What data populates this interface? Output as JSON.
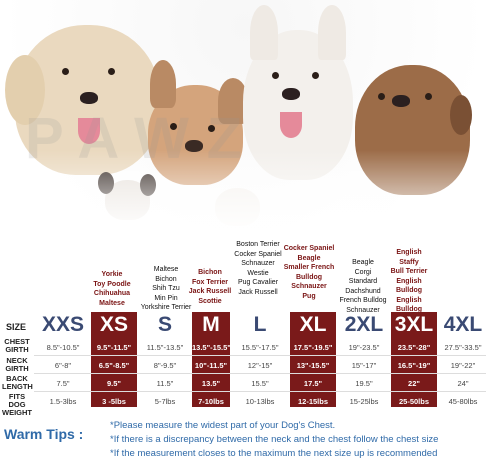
{
  "watermark": "PAWZ",
  "breeds": [
    {
      "col": "xs",
      "items": [
        "Yorkie",
        "Toy Poodle",
        "Chihuahua",
        "Maltese"
      ]
    },
    {
      "col": "s",
      "items": [
        "Maltese",
        "Bichon",
        "Shih Tzu",
        "Min Pin",
        "Yorkshire Terrier"
      ]
    },
    {
      "col": "m",
      "items": [
        "Bichon",
        "Fox Terrier",
        "Jack Russell",
        "Scottie"
      ]
    },
    {
      "col": "l",
      "items": [
        "Boston Terrier",
        "Cocker Spaniel",
        "Schnauzer",
        "Westie",
        "Pug Cavalier",
        "Jack Russell"
      ]
    },
    {
      "col": "xl",
      "items": [
        "Cocker Spaniel",
        "Beagle",
        "Smaller French Bulldog",
        "Schnauzer",
        "Pug"
      ]
    },
    {
      "col": "2xl",
      "items": [
        "Beagle",
        "Corgi",
        "Standard Dachshund",
        "French Bulldog",
        "Schnauzer"
      ]
    },
    {
      "col": "3xl",
      "items": [
        "English Staffy",
        "Bull Terrier",
        "English Bulldog",
        "English Bulldog"
      ]
    }
  ],
  "table": {
    "size_header": "SIZE",
    "sizes": [
      "XXS",
      "XS",
      "S",
      "M",
      "L",
      "XL",
      "2XL",
      "3XL",
      "4XL"
    ],
    "highlight_colors": {
      "dark_red": "#7a1a1a",
      "size_blue": "#3a4a73"
    },
    "rows": [
      {
        "label": "CHEST GIRTH",
        "values": [
          "8.5\"-10.5\"",
          "9.5\"-11.5\"",
          "11.5\"-13.5\"",
          "13.5\"-15.5\"",
          "15.5\"-17.5\"",
          "17.5\"-19.5\"",
          "19\"-23.5\"",
          "23.5\"-28\"",
          "27.5\"-33.5\""
        ]
      },
      {
        "label": "NECK GIRTH",
        "values": [
          "6\"-8\"",
          "6.5\"-8.5\"",
          "8\"-9.5\"",
          "10\"-11.5\"",
          "12\"-15\"",
          "13\"-15.5\"",
          "15\"-17\"",
          "16.5\"-19\"",
          "19\"-22\""
        ]
      },
      {
        "label": "BACK LENGTH",
        "values": [
          "7.5\"",
          "9.5\"",
          "11.5\"",
          "13.5\"",
          "15.5\"",
          "17.5\"",
          "19.5\"",
          "22\"",
          "24\""
        ]
      },
      {
        "label": "FITS DOG WEIGHT",
        "values": [
          "1.5-3lbs",
          "3 -5lbs",
          "5-7lbs",
          "7-10lbs",
          "10-13lbs",
          "12-15lbs",
          "15-25lbs",
          "25-50lbs",
          "45-80lbs"
        ]
      }
    ]
  },
  "tips": {
    "title": "Warm Tips :",
    "lines": [
      "*Please measure the widest part of your Dog's Chest.",
      "*If there is a discrepancy between the neck and the chest  follow the chest size",
      "*If the measurement closes to the maximum the next size up is recommended"
    ]
  }
}
